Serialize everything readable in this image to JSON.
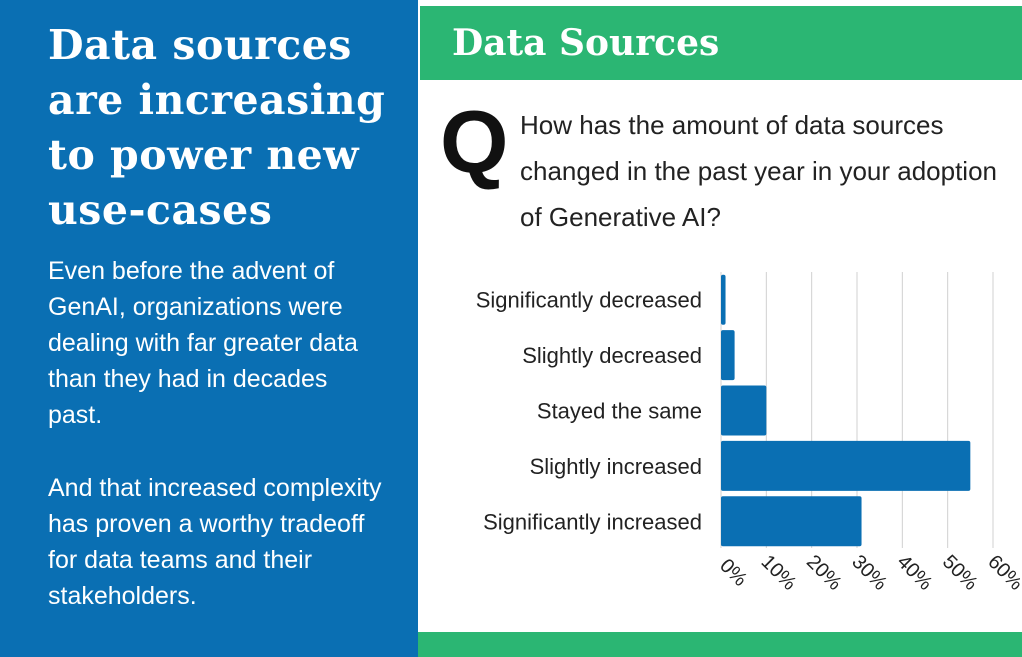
{
  "left": {
    "headline": "Data sources are increasing to power new use-cases",
    "paragraph1": "Even before the advent of GenAI, organizations were dealing with far greater data than they had in decades past.",
    "paragraph2": "And that increased complexity has proven a worthy tradeoff for data teams and their stakeholders."
  },
  "header": {
    "title": "Data Sources"
  },
  "question": {
    "letter": "Q",
    "text": "How has the amount of data sources changed in the past year in your adoption of Generative AI?"
  },
  "colors": {
    "left_panel": "#0a6fb3",
    "header_band": "#2bb673",
    "bar": "#0a6fb3",
    "grid": "#d0d0d0"
  },
  "chart_data": {
    "type": "bar",
    "orientation": "horizontal",
    "categories": [
      "Significantly decreased",
      "Slightly decreased",
      "Stayed the same",
      "Slightly increased",
      "Significantly increased"
    ],
    "values": [
      1,
      3,
      10,
      55,
      31
    ],
    "unit": "%",
    "xlim": [
      0,
      60
    ],
    "x_ticks": [
      "0%",
      "10%",
      "20%",
      "30%",
      "40%",
      "50%",
      "60%"
    ],
    "grid": true,
    "title": "",
    "xlabel": "",
    "ylabel": ""
  }
}
